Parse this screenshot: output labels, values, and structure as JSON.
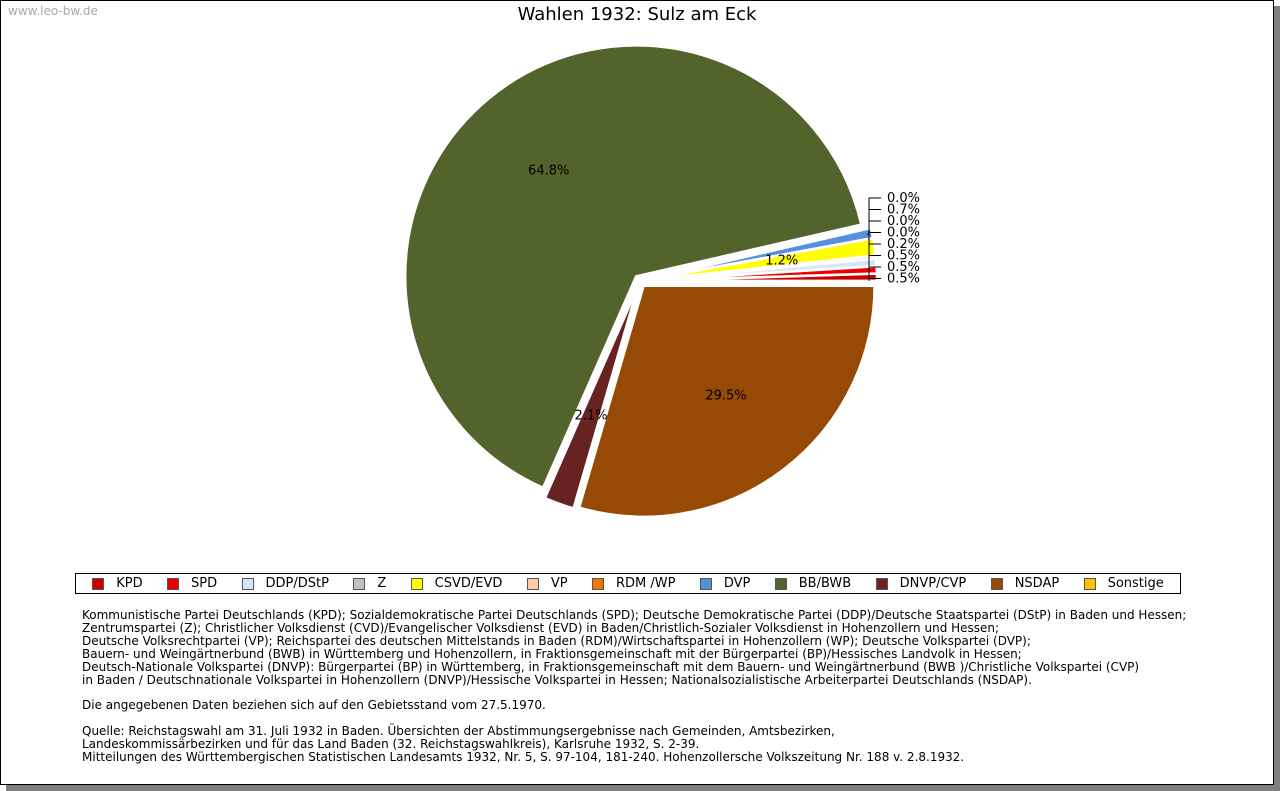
{
  "watermark": "www.leo-bw.de",
  "chart_data": {
    "type": "pie",
    "title": "Wahlen 1932: Sulz am Eck",
    "slices": [
      {
        "name": "KPD",
        "value": 0.5,
        "label": "0.5%",
        "color": "#cc0000"
      },
      {
        "name": "SPD",
        "value": 0.5,
        "label": "0.5%",
        "color": "#ee0000"
      },
      {
        "name": "DDP/DStP",
        "value": 0.5,
        "label": "0.5%",
        "color": "#d6e4f5"
      },
      {
        "name": "Z",
        "value": 0.2,
        "label": "0.2%",
        "color": "#c0c0c0"
      },
      {
        "name": "CSVD/EVD",
        "value": 1.2,
        "label": "1.2%",
        "color": "#ffff00"
      },
      {
        "name": "VP",
        "value": 0.0,
        "label": "0.0%",
        "color": "#ffccaa"
      },
      {
        "name": "RDM /WP",
        "value": 0.0,
        "label": "0.0%",
        "color": "#ee7700"
      },
      {
        "name": "DVP",
        "value": 0.7,
        "label": "0.7%",
        "color": "#5590dd"
      },
      {
        "name": "BB/BWB",
        "value": 64.8,
        "label": "64.8%",
        "color": "#52632b"
      },
      {
        "name": "DNVP/CVP",
        "value": 2.1,
        "label": "2.1%",
        "color": "#672222"
      },
      {
        "name": "NSDAP",
        "value": 29.5,
        "label": "29.5%",
        "color": "#964a06"
      },
      {
        "name": "Sonstige",
        "value": 0.0,
        "label": "0.0%",
        "color": "#ffc000"
      }
    ],
    "legend_position": "bottom"
  },
  "notes": {
    "parties": [
      "Kommunistische Partei Deutschlands (KPD); Sozialdemokratische Partei Deutschlands (SPD); Deutsche Demokratische Partei (DDP)/Deutsche Staatspartei (DStP) in Baden und Hessen;",
      "Zentrumspartei (Z); Christlicher Volksdienst (CVD)/Evangelischer Volksdienst (EVD) in Baden/Christlich-Sozialer Volksdienst in Hohenzollern und Hessen;",
      "Deutsche Volksrechtpartei (VP); Reichspartei des deutschen Mittelstands in Baden (RDM)/Wirtschaftspartei in Hohenzollern (WP); Deutsche Volkspartei (DVP);",
      "Bauern- und Weingärtnerbund (BWB) in Württemberg und Hohenzollern, in Fraktionsgemeinschaft mit der Bürgerpartei (BP)/Hessisches Landvolk in Hessen;",
      "Deutsch-Nationale Volkspartei (DNVP): Bürgerpartei (BP) in Württemberg, in Fraktionsgemeinschaft mit dem Bauern- und Weingärtnerbund (BWB )/Christliche Volkspartei (CVP)",
      "in Baden / Deutschnationale Volkspartei in Hohenzollern (DNVP)/Hessische Volkspartei in Hessen; Nationalsozialistische Arbeiterpartei Deutschlands (NSDAP)."
    ],
    "territory": "Die angegebenen Daten beziehen sich auf den Gebietsstand vom 27.5.1970.",
    "source": [
      "Quelle: Reichstagswahl am 31. Juli 1932 in Baden. Übersichten der Abstimmungsergebnisse nach Gemeinden, Amtsbezirken,",
      "Landeskommissärbezirken und für das Land Baden (32. Reichstagswahlkreis), Karlsruhe 1932, S. 2-39.",
      "Mitteilungen des Württembergischen Statistischen Landesamts 1932, Nr. 5, S. 97-104, 181-240. Hohenzollersche Volkszeitung Nr. 188 v. 2.8.1932."
    ]
  }
}
